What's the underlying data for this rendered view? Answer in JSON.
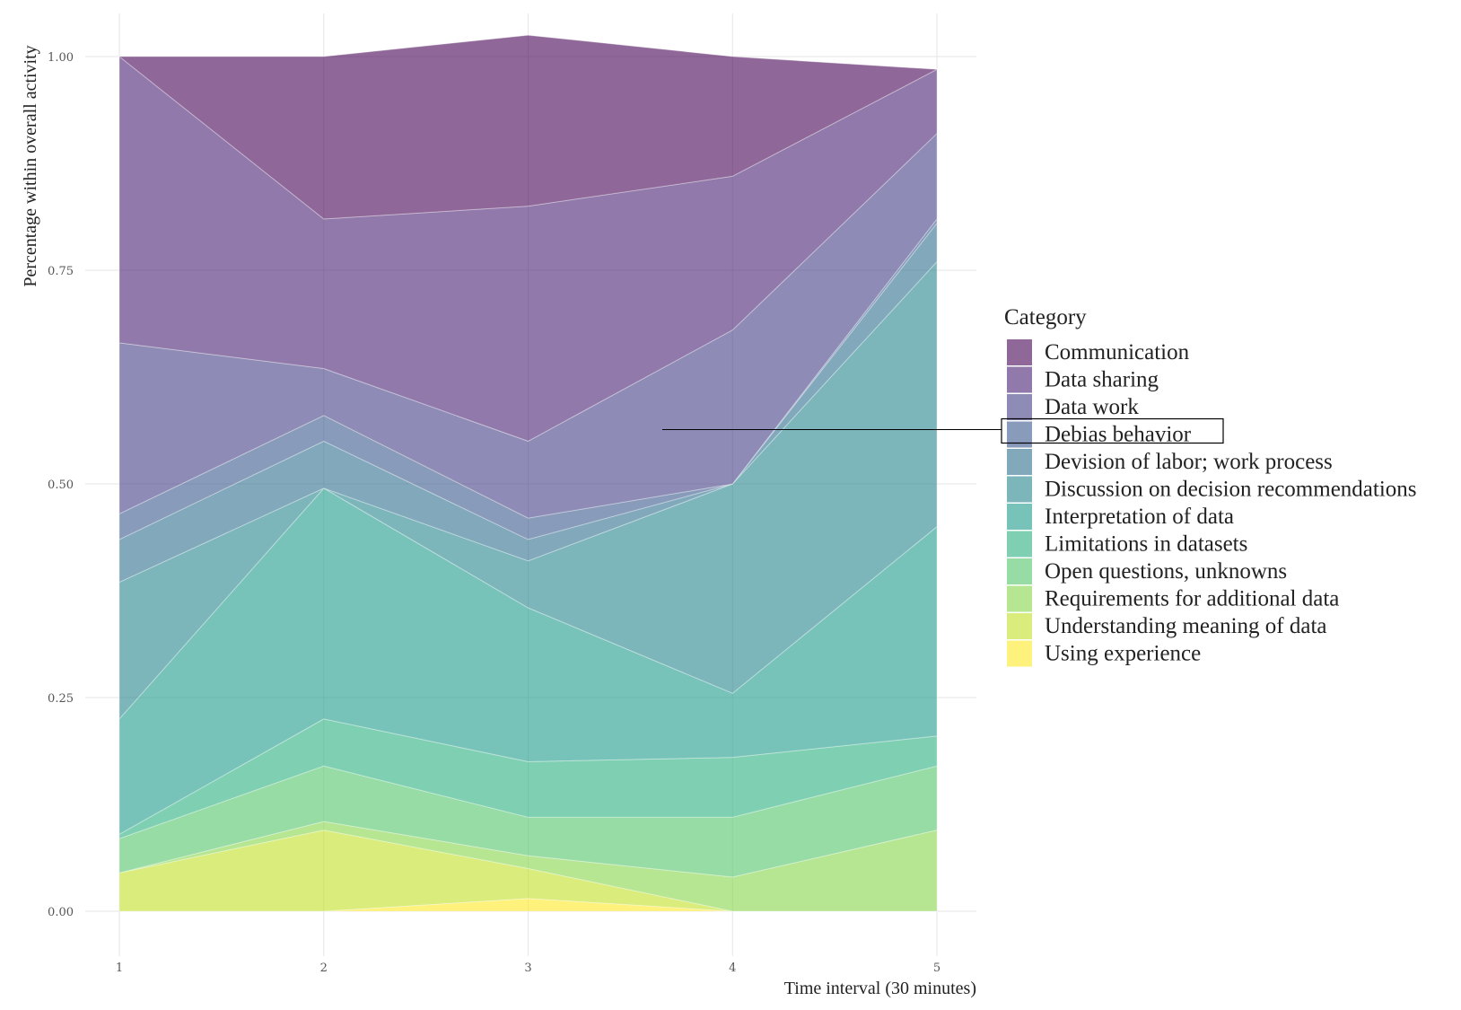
{
  "chart_data": {
    "type": "area",
    "stacked": true,
    "xlabel": "Time interval (30 minutes)",
    "ylabel": "Percentage within overall activity",
    "x": [
      1,
      2,
      3,
      4,
      5
    ],
    "x_ticks": [
      "1",
      "2",
      "3",
      "4",
      "5"
    ],
    "y_ticks": [
      "0.00",
      "0.25",
      "0.50",
      "0.75",
      "1.00"
    ],
    "ylim": [
      0,
      1
    ],
    "grid": true,
    "legend": {
      "title": "Category",
      "placement": "right",
      "highlighted": "Debias behavior"
    },
    "series": [
      {
        "name": "Using experience",
        "color": "#FDE725",
        "values": [
          0.0,
          0.0,
          0.015,
          0.0,
          0.0
        ]
      },
      {
        "name": "Understanding meaning of data",
        "color": "#C2DF23",
        "values": [
          0.045,
          0.095,
          0.035,
          0.0,
          0.0
        ]
      },
      {
        "name": "Requirements for additional data",
        "color": "#86D549",
        "values": [
          0.0,
          0.01,
          0.015,
          0.04,
          0.095
        ]
      },
      {
        "name": "Open questions, unknowns",
        "color": "#52C569",
        "values": [
          0.04,
          0.065,
          0.045,
          0.07,
          0.075
        ]
      },
      {
        "name": "Limitations in datasets",
        "color": "#2AB07F",
        "values": [
          0.005,
          0.055,
          0.065,
          0.07,
          0.035
        ]
      },
      {
        "name": "Interpretation of data",
        "color": "#1E9B8A",
        "values": [
          0.135,
          0.27,
          0.18,
          0.075,
          0.245
        ]
      },
      {
        "name": "Discussion on decision recommendations",
        "color": "#25858E",
        "values": [
          0.16,
          0.0,
          0.055,
          0.245,
          0.31
        ]
      },
      {
        "name": "Devision of labor; work process",
        "color": "#2D708E",
        "values": [
          0.05,
          0.055,
          0.025,
          0.0,
          0.045
        ]
      },
      {
        "name": "Debias behavior",
        "color": "#38588C",
        "values": [
          0.03,
          0.03,
          0.025,
          0.0,
          0.005
        ]
      },
      {
        "name": "Data work",
        "color": "#433E85",
        "values": [
          0.2,
          0.055,
          0.09,
          0.18,
          0.1
        ]
      },
      {
        "name": "Data sharing",
        "color": "#482173",
        "values": [
          0.335,
          0.175,
          0.275,
          0.18,
          0.075
        ]
      },
      {
        "name": "Communication",
        "color": "#440154",
        "values": [
          0.0,
          0.19,
          0.2,
          0.14,
          0.0
        ]
      }
    ]
  }
}
